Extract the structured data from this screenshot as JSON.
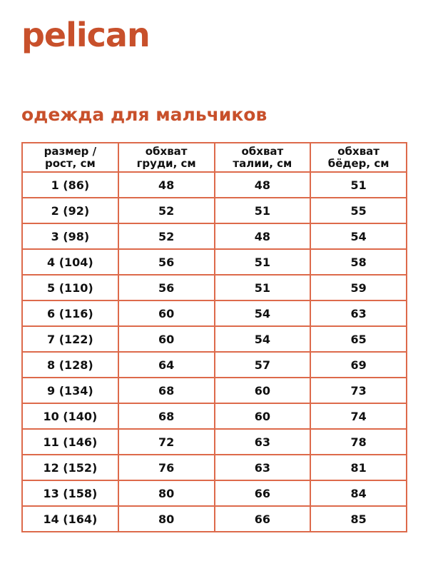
{
  "brand": {
    "logo": "pelican",
    "color": "#c8502b"
  },
  "title": "одежда для мальчиков",
  "table": {
    "border_color": "#dd6a4b",
    "headers": [
      [
        "размер /",
        "рост, см"
      ],
      [
        "обхват",
        "груди, см"
      ],
      [
        "обхват",
        "талии, см"
      ],
      [
        "обхват",
        "бёдер, см"
      ]
    ],
    "rows": [
      [
        "1 (86)",
        "48",
        "48",
        "51"
      ],
      [
        "2 (92)",
        "52",
        "51",
        "55"
      ],
      [
        "3 (98)",
        "52",
        "48",
        "54"
      ],
      [
        "4 (104)",
        "56",
        "51",
        "58"
      ],
      [
        "5 (110)",
        "56",
        "51",
        "59"
      ],
      [
        "6 (116)",
        "60",
        "54",
        "63"
      ],
      [
        "7 (122)",
        "60",
        "54",
        "65"
      ],
      [
        "8 (128)",
        "64",
        "57",
        "69"
      ],
      [
        "9 (134)",
        "68",
        "60",
        "73"
      ],
      [
        "10 (140)",
        "68",
        "60",
        "74"
      ],
      [
        "11 (146)",
        "72",
        "63",
        "78"
      ],
      [
        "12 (152)",
        "76",
        "63",
        "81"
      ],
      [
        "13 (158)",
        "80",
        "66",
        "84"
      ],
      [
        "14 (164)",
        "80",
        "66",
        "85"
      ]
    ]
  }
}
